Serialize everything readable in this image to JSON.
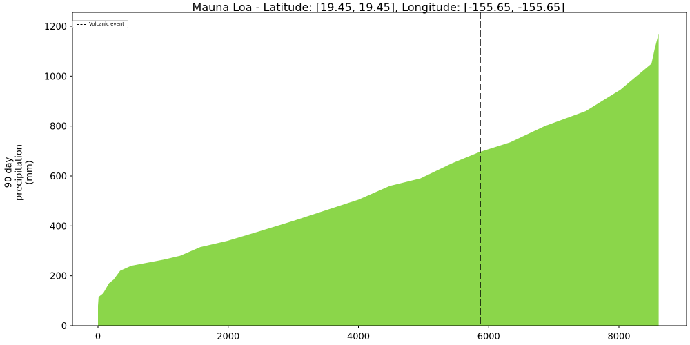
{
  "chart_data": {
    "type": "bar",
    "title": "Mauna Loa - Latitude: [19.45, 19.45], Longitude: [-155.65, -155.65]",
    "xlabel": "",
    "ylabel": "90 day\nprecipitation\n(mm)",
    "ylabel_lines": [
      "90 day",
      "precipitation",
      "(mm)"
    ],
    "xlim": [
      -450,
      9050
    ],
    "ylim": [
      0,
      1240
    ],
    "x_ticks": [
      0,
      2000,
      4000,
      6000,
      8000
    ],
    "y_ticks": [
      0,
      200,
      400,
      600,
      800,
      1000,
      1200
    ],
    "grid": false,
    "color": "#8BD64A",
    "description": "Sorted 90-day precipitation values (ascending) plotted as dense bars",
    "x": [
      0,
      10,
      80,
      170,
      240,
      340,
      510,
      1010,
      1260,
      1570,
      1990,
      2500,
      3000,
      3470,
      4000,
      4480,
      4950,
      5430,
      5850,
      6330,
      6860,
      7490,
      8020,
      8340,
      8500,
      8550,
      8610
    ],
    "values": [
      80,
      115,
      130,
      170,
      185,
      220,
      240,
      265,
      280,
      315,
      340,
      380,
      420,
      460,
      505,
      560,
      590,
      650,
      695,
      735,
      800,
      860,
      945,
      1015,
      1050,
      1110,
      1170
    ],
    "annotations": [
      {
        "type": "vline",
        "x": 5870,
        "style": "dashed",
        "color": "#000000",
        "label": "Volcanic event"
      }
    ],
    "legend": {
      "position": "upper left",
      "entries": [
        "Volcanic event"
      ]
    }
  },
  "title": "Mauna Loa - Latitude: [19.45, 19.45], Longitude: [-155.65, -155.65]",
  "y_axis": {
    "label_lines": [
      "90 day",
      "precipitation",
      "(mm)"
    ],
    "ticks": [
      "0",
      "200",
      "400",
      "600",
      "800",
      "1000",
      "1200"
    ]
  },
  "x_axis": {
    "ticks": [
      "0",
      "2000",
      "4000",
      "6000",
      "8000"
    ]
  },
  "legend": {
    "entries": [
      {
        "label": "Volcanic event",
        "style": "dashed"
      }
    ]
  }
}
